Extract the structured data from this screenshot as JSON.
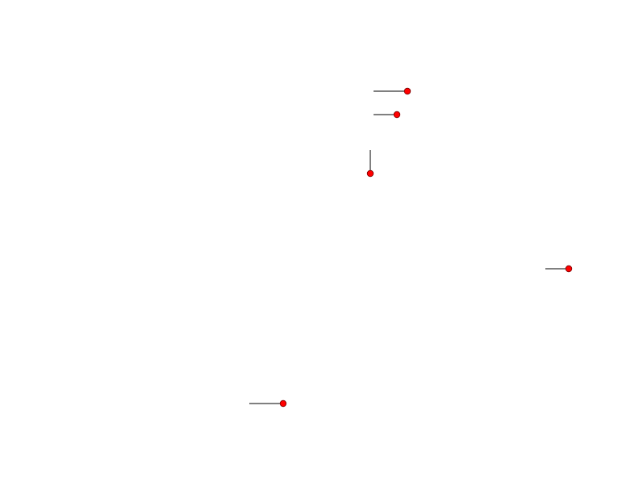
{
  "canvas": {
    "background": "#ffffff",
    "handle_color": "#ff0000",
    "handle_stroke": "#7a0000",
    "line_color": "#000000",
    "handle_icon": "circle-handle-icon"
  }
}
